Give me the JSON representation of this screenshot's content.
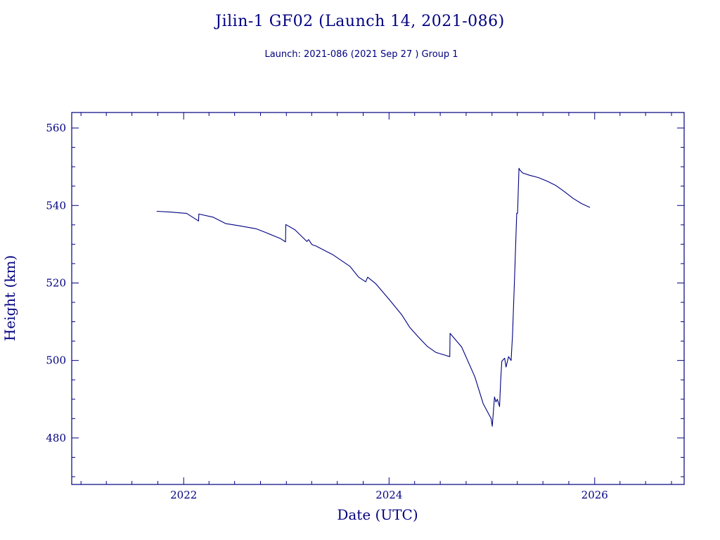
{
  "chart_data": {
    "type": "line",
    "title": "Jilin-1 GF02 (Launch 14, 2021-086)",
    "subtitle": "Launch: 2021-086  (2021 Sep 27 )  Group 1",
    "xlabel": "Date (UTC)",
    "ylabel": "Height (km)",
    "xlim": [
      "2020-11-29",
      "2026-11-15"
    ],
    "ylim": [
      468,
      564
    ],
    "x_ticks": [
      "2022",
      "2024",
      "2026"
    ],
    "y_ticks": [
      480,
      500,
      520,
      540,
      560
    ],
    "grid": false,
    "color": "#000080",
    "series": [
      {
        "x": [
          "2021-09-27",
          "2021-11-15",
          "2022-01-05",
          "2022-01-11",
          "2022-02-23",
          "2022-02-24",
          "2022-04-15",
          "2022-05-31",
          "2022-07-15",
          "2022-09-15",
          "2022-10-20",
          "2022-12-10",
          "2022-12-29",
          "2022-12-30",
          "2023-02-01",
          "2023-03-15",
          "2023-03-21",
          "2023-04-01",
          "2023-04-05",
          "2023-04-15",
          "2023-06-15",
          "2023-08-15",
          "2023-09-15",
          "2023-10-10",
          "2023-10-17",
          "2023-11-15",
          "2024-01-01",
          "2024-02-15",
          "2024-03-15",
          "2024-04-15",
          "2024-05-15",
          "2024-06-15",
          "2024-08-04",
          "2024-08-05",
          "2024-09-15",
          "2024-11-01",
          "2024-12-01",
          "2024-12-29",
          "2025-01-02",
          "2025-01-10",
          "2025-01-15",
          "2025-01-20",
          "2025-01-28",
          "2025-02-01",
          "2025-02-05",
          "2025-02-15",
          "2025-02-20",
          "2025-03-01",
          "2025-03-10",
          "2025-03-15",
          "2025-03-22",
          "2025-03-30",
          "2025-04-02",
          "2025-04-07",
          "2025-04-10",
          "2025-04-20",
          "2025-05-15",
          "2025-06-15",
          "2025-07-15",
          "2025-08-15",
          "2025-09-15",
          "2025-10-15",
          "2025-11-15",
          "2025-12-15"
        ],
        "y": [
          538.5,
          538.3,
          538,
          538,
          536,
          537.8,
          537,
          535.3,
          534.8,
          534,
          533,
          531.5,
          530.6,
          535.1,
          533.7,
          530.7,
          531.2,
          530,
          529.8,
          529.6,
          527.3,
          524.3,
          521.5,
          520.3,
          521.5,
          519.8,
          515.8,
          511.8,
          508.5,
          506,
          503.7,
          502.1,
          501,
          507,
          503.5,
          495.8,
          488.8,
          485,
          483,
          490.6,
          489.3,
          490,
          488.1,
          495,
          499.8,
          500.6,
          498.3,
          501,
          500,
          506.5,
          520.7,
          538,
          538,
          549.6,
          549.2,
          548.4,
          547.8,
          547.2,
          546.3,
          545.2,
          543.6,
          541.9,
          540.5,
          539.5
        ]
      }
    ]
  }
}
